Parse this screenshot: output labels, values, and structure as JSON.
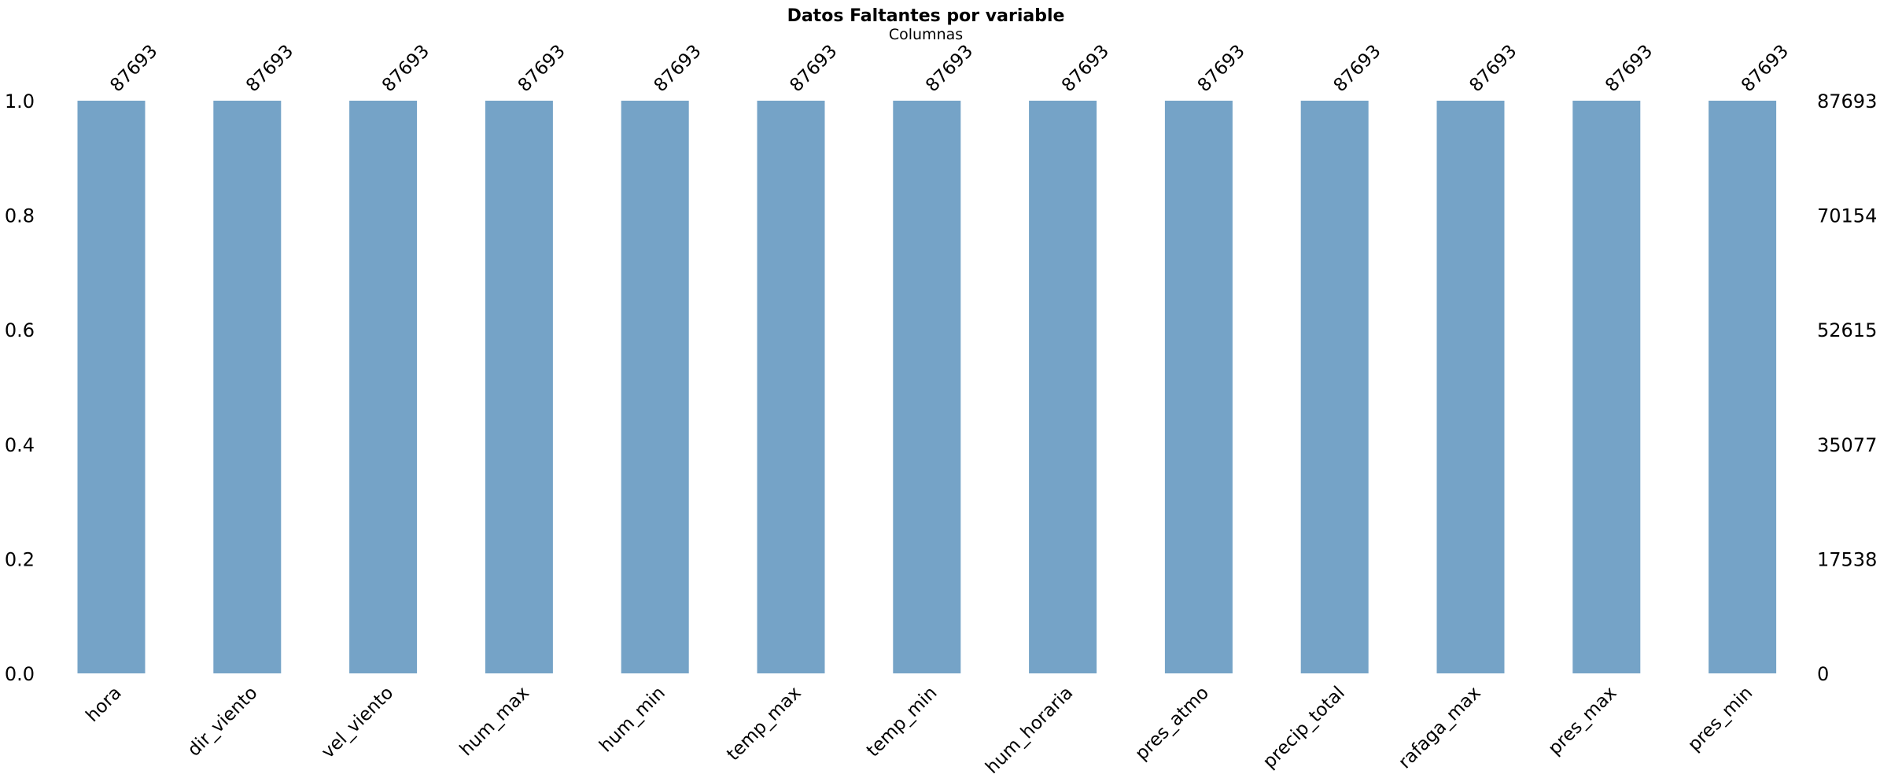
{
  "chart_data": {
    "type": "bar",
    "title": "Datos Faltantes por variable",
    "subtitle": "Columnas",
    "categories": [
      "hora",
      "dir_viento",
      "vel_viento",
      "hum_max",
      "hum_min",
      "temp_max",
      "temp_min",
      "hum_horaria",
      "pres_atmo",
      "precip_total",
      "rafaga_max",
      "pres_max",
      "pres_min"
    ],
    "values": [
      1.0,
      1.0,
      1.0,
      1.0,
      1.0,
      1.0,
      1.0,
      1.0,
      1.0,
      1.0,
      1.0,
      1.0,
      1.0
    ],
    "counts": [
      "87693",
      "87693",
      "87693",
      "87693",
      "87693",
      "87693",
      "87693",
      "87693",
      "87693",
      "87693",
      "87693",
      "87693",
      "87693"
    ],
    "ylim": [
      0,
      1
    ],
    "left_ticks": [
      "0.0",
      "0.2",
      "0.4",
      "0.6",
      "0.8",
      "1.0"
    ],
    "right_ticks": [
      "0",
      "17538",
      "35077",
      "52615",
      "70154",
      "87693"
    ],
    "bar_color": "#75a3c7",
    "grid": false
  }
}
